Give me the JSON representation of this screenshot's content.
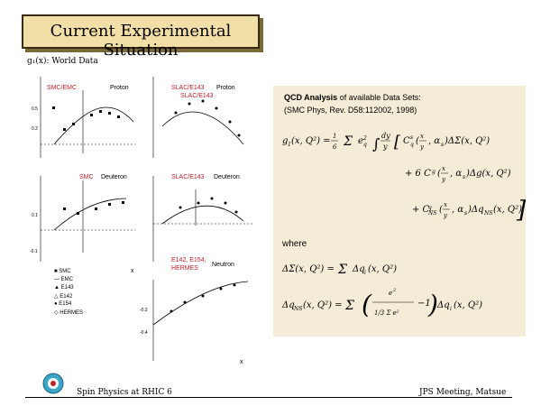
{
  "title": "Current Experimental Situation",
  "world_data": "g₁(x):  World Data",
  "panels": {
    "top_left": {
      "exp": "SMC/EMC",
      "target": "Proton"
    },
    "top_right": {
      "exp": "SLAC/E143",
      "target": "Proton",
      "sub": "SLAC/E143"
    },
    "mid_left": {
      "exp": "SMC",
      "target": "Deuteron"
    },
    "mid_right": {
      "exp": "SLAC/E143",
      "target": "Deuteron"
    },
    "bot_right": {
      "exp1": "E142, E154,",
      "exp2": "HERMES",
      "target": "Neutron"
    }
  },
  "xlabel": "x",
  "legend": [
    "SMC",
    "EMC",
    "E143",
    "E142",
    "E154",
    "HERMES"
  ],
  "qcd": {
    "title_bold": "QCD Analysis",
    "title_rest": " of available Data Sets:",
    "ref": "(SMC Phys, Rev. D58:112002, 1998)",
    "where": "where"
  },
  "footer": {
    "left": "Spin Physics at RHIC   6",
    "right": "JPS Meeting, Matsue"
  }
}
